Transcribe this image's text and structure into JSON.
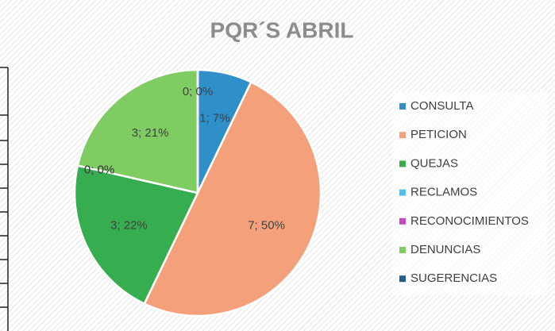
{
  "chart_data": {
    "type": "pie",
    "title": "PQR´S ABRIL",
    "categories": [
      "CONSULTA",
      "PETICION",
      "QUEJAS",
      "RECLAMOS",
      "RECONOCIMIENTOS",
      "DENUNCIAS",
      "SUGERENCIAS"
    ],
    "values": [
      1,
      7,
      3,
      0,
      0,
      3,
      0
    ],
    "value_labels": [
      "1; 7%",
      "7; 50%",
      "3; 22%",
      "0; 0%",
      "0; 0%",
      "3; 21%",
      "0; 0%"
    ],
    "colors": [
      "#2f8fc8",
      "#f4a07a",
      "#36ad4f",
      "#4cc0ee",
      "#c44bc4",
      "#7fcc62",
      "#1f5f8b"
    ],
    "legend": "right"
  }
}
